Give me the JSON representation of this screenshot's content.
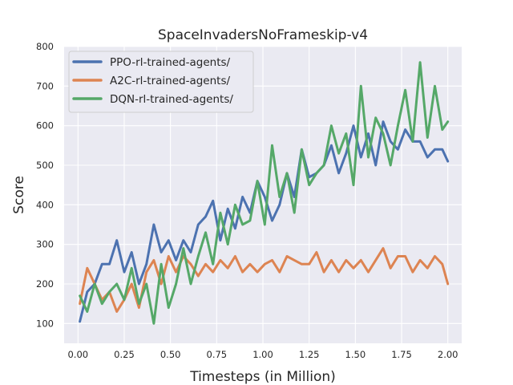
{
  "chart_data": {
    "type": "line",
    "title": "SpaceInvadersNoFrameskip-v4",
    "xlabel": "Timesteps (in Million)",
    "ylabel": "Score",
    "xlim": [
      -0.075,
      2.075
    ],
    "ylim": [
      50,
      800
    ],
    "xticks": [
      0.0,
      0.25,
      0.5,
      0.75,
      1.0,
      1.25,
      1.5,
      1.75,
      2.0
    ],
    "xtick_labels": [
      "0.00",
      "0.25",
      "0.50",
      "0.75",
      "1.00",
      "1.25",
      "1.50",
      "1.75",
      "2.00"
    ],
    "yticks": [
      100,
      200,
      300,
      400,
      500,
      600,
      700,
      800
    ],
    "ytick_labels": [
      "100",
      "200",
      "300",
      "400",
      "500",
      "600",
      "700",
      "800"
    ],
    "grid": true,
    "legend_position": "top-left",
    "background": "#eaeaf2",
    "series": [
      {
        "name": "PPO-rl-trained-agents/",
        "color": "#4c72b0",
        "x": [
          0.01,
          0.05,
          0.09,
          0.13,
          0.17,
          0.21,
          0.25,
          0.29,
          0.33,
          0.37,
          0.41,
          0.45,
          0.49,
          0.53,
          0.57,
          0.61,
          0.65,
          0.69,
          0.73,
          0.77,
          0.81,
          0.85,
          0.89,
          0.93,
          0.97,
          1.01,
          1.05,
          1.09,
          1.13,
          1.17,
          1.21,
          1.25,
          1.29,
          1.33,
          1.37,
          1.41,
          1.45,
          1.49,
          1.53,
          1.57,
          1.61,
          1.65,
          1.69,
          1.73,
          1.77,
          1.81,
          1.85,
          1.89,
          1.93,
          1.97,
          2.0
        ],
        "y": [
          105,
          180,
          200,
          250,
          250,
          310,
          230,
          280,
          200,
          250,
          350,
          280,
          310,
          260,
          310,
          280,
          350,
          370,
          410,
          310,
          390,
          340,
          420,
          380,
          460,
          420,
          360,
          400,
          480,
          420,
          540,
          470,
          480,
          500,
          550,
          480,
          530,
          600,
          520,
          580,
          500,
          610,
          560,
          540,
          590,
          560,
          560,
          520,
          540,
          540,
          510
        ]
      },
      {
        "name": "A2C-rl-trained-agents/",
        "color": "#dd8452",
        "x": [
          0.01,
          0.05,
          0.09,
          0.13,
          0.17,
          0.21,
          0.25,
          0.29,
          0.33,
          0.37,
          0.41,
          0.45,
          0.49,
          0.53,
          0.57,
          0.61,
          0.65,
          0.69,
          0.73,
          0.77,
          0.81,
          0.85,
          0.89,
          0.93,
          0.97,
          1.01,
          1.05,
          1.09,
          1.13,
          1.17,
          1.21,
          1.25,
          1.29,
          1.33,
          1.37,
          1.41,
          1.45,
          1.49,
          1.53,
          1.57,
          1.61,
          1.65,
          1.69,
          1.73,
          1.77,
          1.81,
          1.85,
          1.89,
          1.93,
          1.97,
          2.0
        ],
        "y": [
          150,
          240,
          200,
          160,
          180,
          130,
          160,
          200,
          140,
          230,
          260,
          200,
          270,
          230,
          270,
          250,
          220,
          250,
          230,
          260,
          240,
          270,
          230,
          250,
          230,
          250,
          260,
          230,
          270,
          260,
          250,
          250,
          280,
          230,
          260,
          230,
          260,
          240,
          260,
          230,
          260,
          290,
          240,
          270,
          270,
          230,
          260,
          240,
          270,
          250,
          200
        ]
      },
      {
        "name": "DQN-rl-trained-agents/",
        "color": "#55a868",
        "x": [
          0.01,
          0.05,
          0.09,
          0.13,
          0.17,
          0.21,
          0.25,
          0.29,
          0.33,
          0.37,
          0.41,
          0.45,
          0.49,
          0.53,
          0.57,
          0.61,
          0.65,
          0.69,
          0.73,
          0.77,
          0.81,
          0.85,
          0.89,
          0.93,
          0.97,
          1.01,
          1.05,
          1.09,
          1.13,
          1.17,
          1.21,
          1.25,
          1.29,
          1.33,
          1.37,
          1.41,
          1.45,
          1.49,
          1.53,
          1.57,
          1.61,
          1.65,
          1.69,
          1.73,
          1.77,
          1.81,
          1.85,
          1.89,
          1.93,
          1.97,
          2.0
        ],
        "y": [
          170,
          130,
          200,
          150,
          180,
          200,
          160,
          240,
          150,
          200,
          100,
          250,
          140,
          200,
          290,
          200,
          270,
          330,
          250,
          380,
          300,
          400,
          350,
          360,
          460,
          350,
          550,
          420,
          480,
          380,
          540,
          450,
          480,
          500,
          600,
          530,
          580,
          450,
          700,
          520,
          620,
          580,
          500,
          600,
          690,
          560,
          760,
          570,
          700,
          590,
          610
        ]
      }
    ]
  }
}
